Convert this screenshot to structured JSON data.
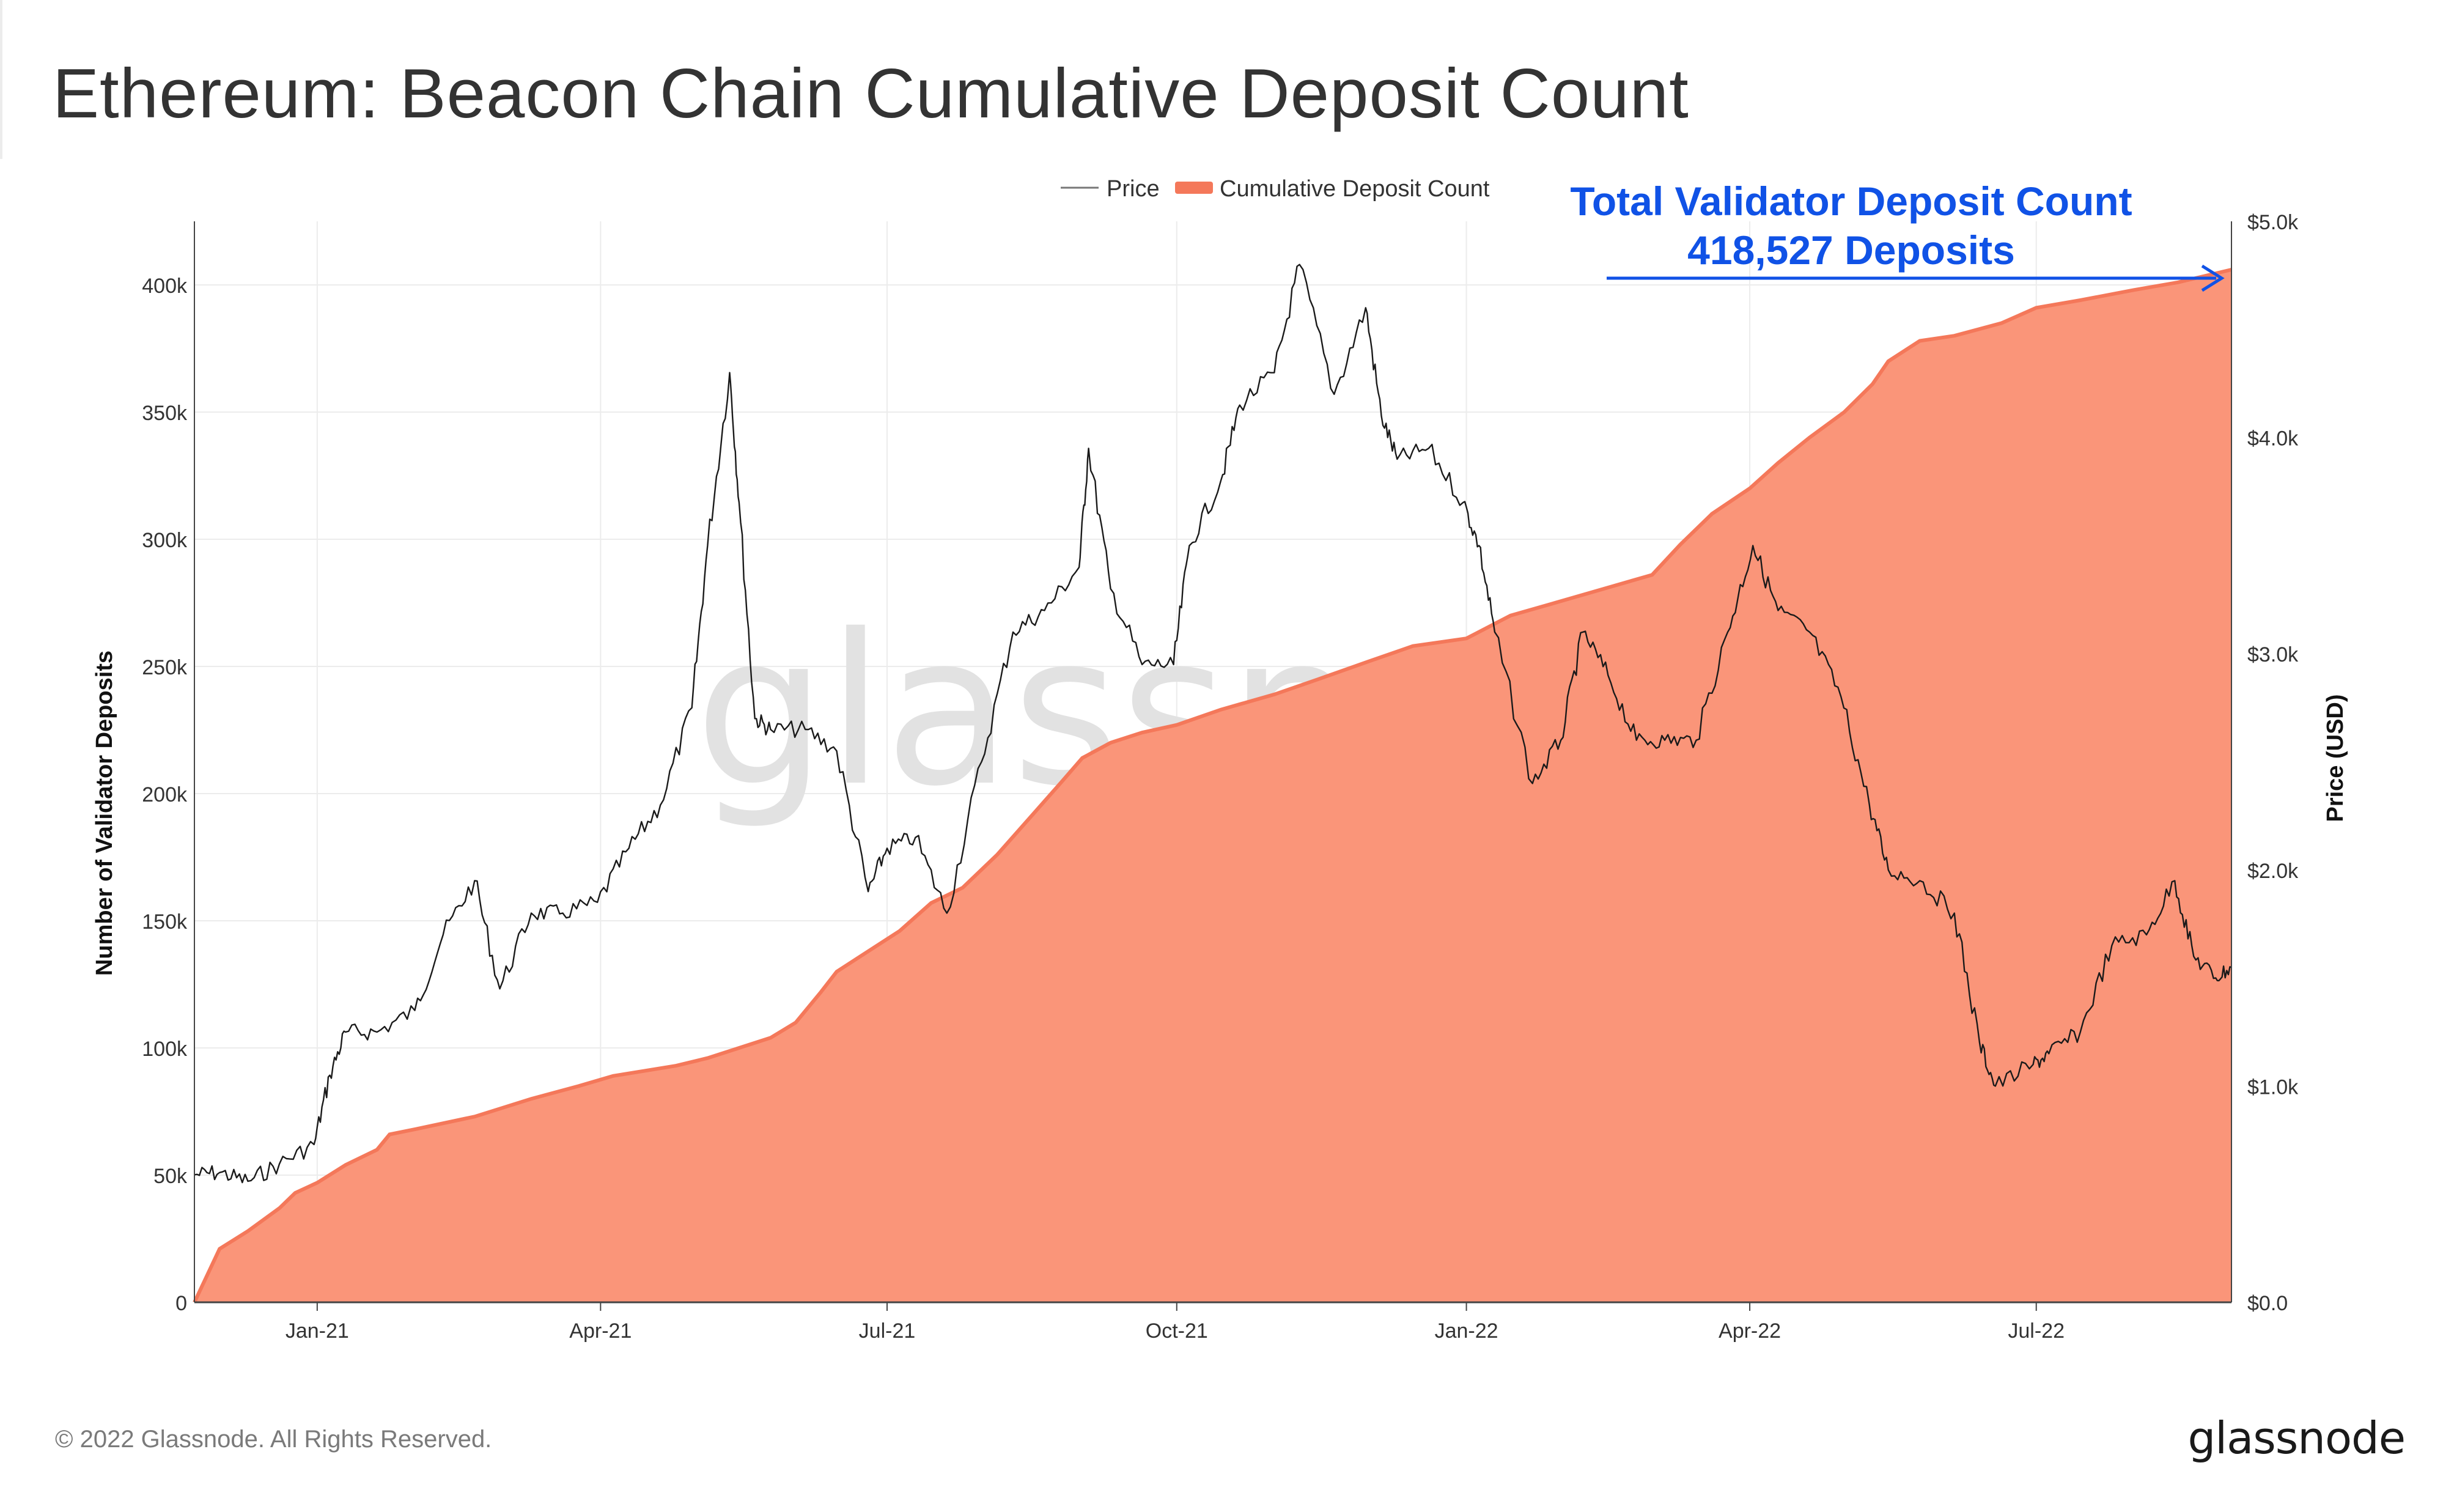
{
  "title": "Ethereum: Beacon Chain Cumulative Deposit Count",
  "footer": {
    "copyright": "© 2022 Glassnode. All Rights Reserved.",
    "brand": "glassnode"
  },
  "watermark": "glassnode",
  "colors": {
    "area_fill": "#fa9579",
    "area_line": "#f4785a",
    "price_line": "#1a1a1a",
    "annotation": "#1052e6",
    "grid": "#ececec",
    "axis_text": "#333333"
  },
  "chart_data": {
    "type": "area",
    "x_range": [
      "2020-11-23",
      "2022-09-01"
    ],
    "x_ticks": [
      "Jan-21",
      "Apr-21",
      "Jul-21",
      "Oct-21",
      "Jan-22",
      "Apr-22",
      "Jul-22"
    ],
    "x_tick_dates": [
      "2021-01-01",
      "2021-04-01",
      "2021-07-01",
      "2021-10-01",
      "2022-01-01",
      "2022-04-01",
      "2022-07-01"
    ],
    "y_left": {
      "label": "Number of Validator Deposits",
      "range": [
        0,
        425000
      ],
      "ticks": [
        0,
        50000,
        100000,
        150000,
        200000,
        250000,
        300000,
        350000,
        400000
      ],
      "tick_labels": [
        "0",
        "50k",
        "100k",
        "150k",
        "200k",
        "250k",
        "300k",
        "350k",
        "400k"
      ]
    },
    "y_right": {
      "label": "Price (USD)",
      "range": [
        0,
        5000
      ],
      "ticks": [
        0,
        1000,
        2000,
        3000,
        4000,
        5000
      ],
      "tick_labels": [
        "$0.0",
        "$1.0k",
        "$2.0k",
        "$3.0k",
        "$4.0k",
        "$5.0k"
      ]
    },
    "legend": {
      "position": "top-center",
      "items": [
        "Price",
        "Cumulative Deposit Count"
      ]
    },
    "grid": true,
    "annotation": {
      "line1": "Total Validator Deposit Count",
      "line2": "418,527 Deposits",
      "value": 418527
    },
    "series": [
      {
        "name": "Cumulative Deposit Count",
        "axis": "left",
        "points": [
          [
            "2020-11-23",
            0
          ],
          [
            "2020-12-01",
            21000
          ],
          [
            "2020-12-10",
            28000
          ],
          [
            "2020-12-20",
            37000
          ],
          [
            "2020-12-25",
            43000
          ],
          [
            "2021-01-01",
            47000
          ],
          [
            "2021-01-10",
            54000
          ],
          [
            "2021-01-20",
            60000
          ],
          [
            "2021-01-24",
            66000
          ],
          [
            "2021-02-01",
            68000
          ],
          [
            "2021-02-20",
            73000
          ],
          [
            "2021-03-10",
            80000
          ],
          [
            "2021-03-25",
            85000
          ],
          [
            "2021-04-05",
            89000
          ],
          [
            "2021-04-15",
            91000
          ],
          [
            "2021-04-25",
            93000
          ],
          [
            "2021-05-05",
            96000
          ],
          [
            "2021-05-15",
            100000
          ],
          [
            "2021-05-25",
            104000
          ],
          [
            "2021-06-02",
            110000
          ],
          [
            "2021-06-10",
            122000
          ],
          [
            "2021-06-15",
            130000
          ],
          [
            "2021-06-25",
            138000
          ],
          [
            "2021-07-05",
            146000
          ],
          [
            "2021-07-15",
            157000
          ],
          [
            "2021-07-25",
            163000
          ],
          [
            "2021-08-05",
            176000
          ],
          [
            "2021-08-15",
            190000
          ],
          [
            "2021-08-25",
            204000
          ],
          [
            "2021-09-01",
            214000
          ],
          [
            "2021-09-10",
            220000
          ],
          [
            "2021-09-20",
            224000
          ],
          [
            "2021-10-01",
            227000
          ],
          [
            "2021-10-15",
            233000
          ],
          [
            "2021-11-01",
            239000
          ],
          [
            "2021-11-15",
            245000
          ],
          [
            "2021-12-01",
            252000
          ],
          [
            "2021-12-15",
            258000
          ],
          [
            "2022-01-01",
            261000
          ],
          [
            "2022-01-15",
            270000
          ],
          [
            "2022-02-01",
            276000
          ],
          [
            "2022-02-15",
            281000
          ],
          [
            "2022-03-01",
            286000
          ],
          [
            "2022-03-10",
            298000
          ],
          [
            "2022-03-20",
            310000
          ],
          [
            "2022-04-01",
            320000
          ],
          [
            "2022-04-10",
            330000
          ],
          [
            "2022-04-20",
            340000
          ],
          [
            "2022-05-01",
            350000
          ],
          [
            "2022-05-10",
            361000
          ],
          [
            "2022-05-15",
            370000
          ],
          [
            "2022-05-25",
            378000
          ],
          [
            "2022-06-05",
            380000
          ],
          [
            "2022-06-20",
            385000
          ],
          [
            "2022-07-01",
            391000
          ],
          [
            "2022-07-15",
            394000
          ],
          [
            "2022-08-01",
            398000
          ],
          [
            "2022-08-15",
            401000
          ],
          [
            "2022-09-01",
            406000
          ]
        ]
      },
      {
        "name": "Price",
        "axis": "right",
        "points": [
          [
            "2020-11-23",
            590
          ],
          [
            "2020-12-01",
            600
          ],
          [
            "2020-12-10",
            560
          ],
          [
            "2020-12-20",
            640
          ],
          [
            "2020-12-31",
            730
          ],
          [
            "2021-01-05",
            1050
          ],
          [
            "2021-01-10",
            1250
          ],
          [
            "2021-01-20",
            1250
          ],
          [
            "2021-02-01",
            1350
          ],
          [
            "2021-02-10",
            1700
          ],
          [
            "2021-02-20",
            1950
          ],
          [
            "2021-02-28",
            1450
          ],
          [
            "2021-03-10",
            1800
          ],
          [
            "2021-03-20",
            1800
          ],
          [
            "2021-03-31",
            1850
          ],
          [
            "2021-04-10",
            2100
          ],
          [
            "2021-04-20",
            2300
          ],
          [
            "2021-04-30",
            2750
          ],
          [
            "2021-05-05",
            3500
          ],
          [
            "2021-05-12",
            4300
          ],
          [
            "2021-05-15",
            3700
          ],
          [
            "2021-05-20",
            2700
          ],
          [
            "2021-05-25",
            2650
          ],
          [
            "2021-06-05",
            2650
          ],
          [
            "2021-06-15",
            2550
          ],
          [
            "2021-06-25",
            1900
          ],
          [
            "2021-07-01",
            2100
          ],
          [
            "2021-07-10",
            2150
          ],
          [
            "2021-07-20",
            1800
          ],
          [
            "2021-07-31",
            2500
          ],
          [
            "2021-08-10",
            3100
          ],
          [
            "2021-08-20",
            3200
          ],
          [
            "2021-08-31",
            3400
          ],
          [
            "2021-09-03",
            3950
          ],
          [
            "2021-09-10",
            3300
          ],
          [
            "2021-09-20",
            2950
          ],
          [
            "2021-09-30",
            2950
          ],
          [
            "2021-10-05",
            3500
          ],
          [
            "2021-10-15",
            3800
          ],
          [
            "2021-10-21",
            4150
          ],
          [
            "2021-11-01",
            4300
          ],
          [
            "2021-11-09",
            4800
          ],
          [
            "2021-11-20",
            4200
          ],
          [
            "2021-11-30",
            4600
          ],
          [
            "2021-12-05",
            4100
          ],
          [
            "2021-12-10",
            3900
          ],
          [
            "2021-12-20",
            3950
          ],
          [
            "2021-12-31",
            3700
          ],
          [
            "2022-01-05",
            3500
          ],
          [
            "2022-01-10",
            3100
          ],
          [
            "2022-01-22",
            2400
          ],
          [
            "2022-01-31",
            2600
          ],
          [
            "2022-02-07",
            3100
          ],
          [
            "2022-02-15",
            2900
          ],
          [
            "2022-02-24",
            2600
          ],
          [
            "2022-03-05",
            2600
          ],
          [
            "2022-03-15",
            2600
          ],
          [
            "2022-03-25",
            3100
          ],
          [
            "2022-04-02",
            3500
          ],
          [
            "2022-04-10",
            3200
          ],
          [
            "2022-04-20",
            3100
          ],
          [
            "2022-04-30",
            2800
          ],
          [
            "2022-05-09",
            2300
          ],
          [
            "2022-05-15",
            2000
          ],
          [
            "2022-05-25",
            1950
          ],
          [
            "2022-06-05",
            1800
          ],
          [
            "2022-06-13",
            1200
          ],
          [
            "2022-06-18",
            1000
          ],
          [
            "2022-06-30",
            1100
          ],
          [
            "2022-07-05",
            1150
          ],
          [
            "2022-07-15",
            1250
          ],
          [
            "2022-07-25",
            1650
          ],
          [
            "2022-08-05",
            1700
          ],
          [
            "2022-08-14",
            1950
          ],
          [
            "2022-08-20",
            1600
          ],
          [
            "2022-08-27",
            1500
          ],
          [
            "2022-09-01",
            1550
          ]
        ]
      }
    ]
  }
}
